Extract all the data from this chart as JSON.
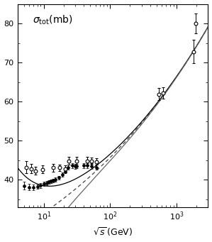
{
  "title": "$\\sigma_{\\mathrm{tot}}(\\mathrm{mb})$",
  "xlabel": "$\\sqrt{s}\\,(\\mathrm{GeV})$",
  "xlim": [
    4,
    3000
  ],
  "ylim": [
    33,
    85
  ],
  "yticks": [
    40,
    50,
    60,
    70,
    80
  ],
  "pp_x": [
    5.0,
    6.0,
    7.0,
    8.0,
    9.0,
    10.0,
    11.0,
    12.0,
    13.0,
    14.0,
    15.0,
    17.0,
    19.0,
    21.0,
    23.5,
    27.0,
    30.0,
    31.0,
    40.0,
    44.7,
    52.8,
    62.5
  ],
  "pp_y": [
    38.4,
    38.1,
    38.0,
    38.2,
    38.5,
    38.9,
    39.1,
    39.4,
    39.6,
    39.8,
    40.0,
    40.5,
    41.3,
    42.1,
    43.2,
    43.6,
    43.4,
    43.5,
    43.6,
    43.6,
    43.5,
    43.2
  ],
  "pp_ye": [
    1.0,
    0.8,
    0.7,
    0.6,
    0.6,
    0.5,
    0.5,
    0.5,
    0.5,
    0.5,
    0.5,
    0.5,
    0.5,
    0.5,
    0.6,
    0.6,
    0.6,
    0.6,
    0.7,
    0.7,
    0.7,
    0.7
  ],
  "ppbar_x": [
    5.5,
    6.5,
    7.5,
    9.5,
    13.8,
    17.5,
    21.0,
    24.0,
    31.0,
    44.7,
    52.8,
    62.5,
    546.0,
    630.0,
    1800.0,
    1960.0
  ],
  "ppbar_y": [
    43.2,
    42.8,
    42.3,
    42.6,
    43.1,
    43.1,
    42.8,
    44.8,
    44.7,
    44.8,
    44.8,
    44.6,
    61.9,
    62.2,
    72.8,
    80.0
  ],
  "ppbar_ye": [
    1.5,
    1.2,
    1.0,
    1.0,
    1.0,
    0.8,
    0.8,
    1.0,
    1.2,
    1.0,
    0.8,
    0.8,
    1.5,
    1.5,
    3.0,
    2.5
  ],
  "pomeron_A": 21.7,
  "pomeron_eps": 0.0808,
  "regge_B": 56.08,
  "regge_eta": 0.4525,
  "background_color": "#ffffff"
}
